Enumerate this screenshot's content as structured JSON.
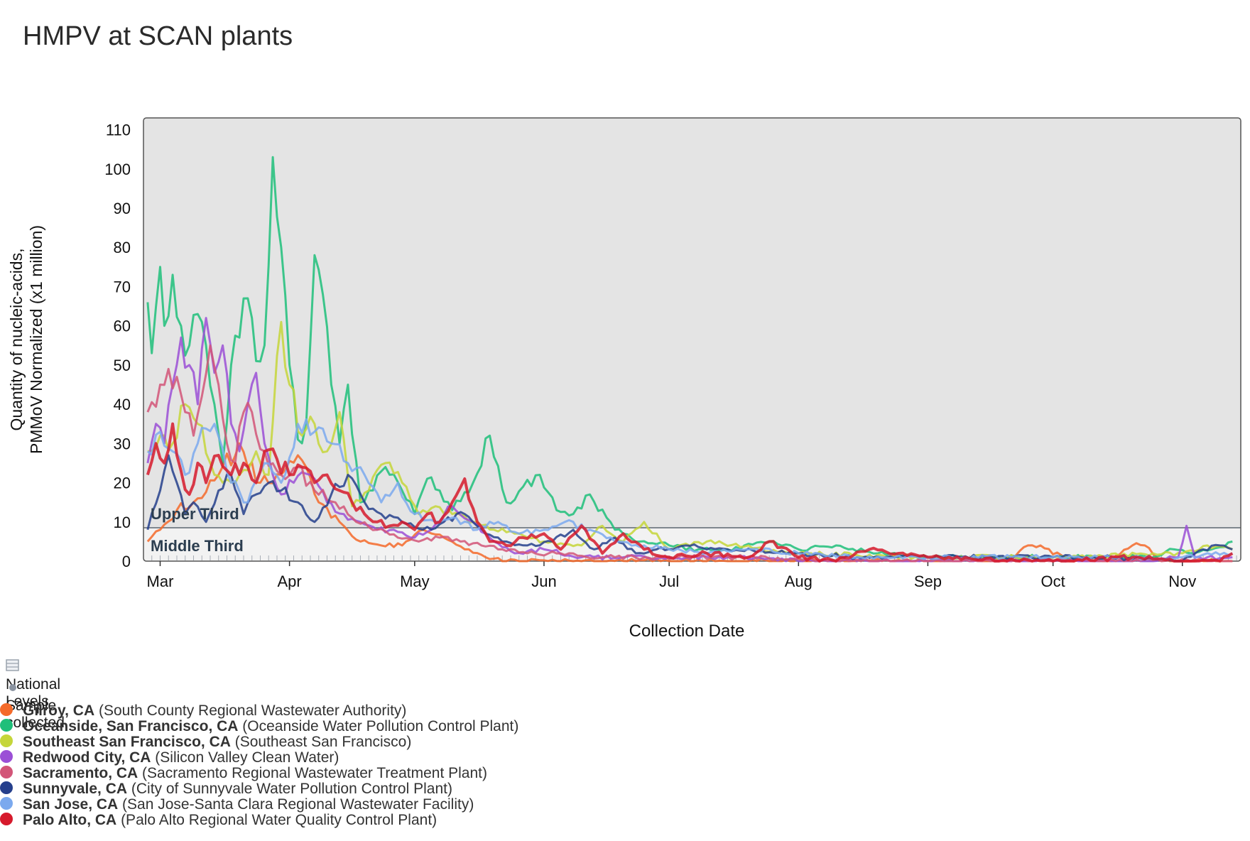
{
  "title": "HMPV at SCAN plants",
  "colors": {
    "plot_bg": "#e4e4e4",
    "bottom_band": "#f2f2f2",
    "frame": "#555555"
  },
  "chart_data": {
    "type": "line",
    "title": "HMPV at SCAN plants",
    "xlabel": "Collection Date",
    "ylabel_line1": "Quantity of nucleic-acids,",
    "ylabel_line2": "PMMoV Normalized (x1 million)",
    "x_tick_labels": [
      "Mar",
      "Apr",
      "May",
      "Jun",
      "Jul",
      "Aug",
      "Sep",
      "Oct",
      "Nov"
    ],
    "x_tick_dates": [
      "2024-03-01",
      "2024-04-01",
      "2024-05-01",
      "2024-06-01",
      "2024-07-01",
      "2024-08-01",
      "2024-09-01",
      "2024-10-01",
      "2024-11-01"
    ],
    "xlim": [
      "2024-02-26",
      "2024-11-15"
    ],
    "y_ticks": [
      0,
      10,
      20,
      30,
      40,
      50,
      60,
      70,
      80,
      90,
      100,
      110
    ],
    "ylim": [
      0,
      113
    ],
    "national_level_bands": [
      {
        "label": "Upper Third",
        "from": 8.5,
        "to": 113
      },
      {
        "label": "Middle Third",
        "from": 0,
        "to": 8.5
      }
    ],
    "series": [
      {
        "name": "Gilroy, CA",
        "color": "#f46a2a",
        "width": 3,
        "x": [
          "2024-02-27",
          "2024-03-01",
          "2024-03-05",
          "2024-03-10",
          "2024-03-15",
          "2024-03-20",
          "2024-03-25",
          "2024-03-30",
          "2024-04-03",
          "2024-04-08",
          "2024-04-13",
          "2024-04-18",
          "2024-04-23",
          "2024-04-28",
          "2024-05-03",
          "2024-05-08",
          "2024-05-13",
          "2024-05-18",
          "2024-05-23",
          "2024-05-28",
          "2024-06-05",
          "2024-06-15",
          "2024-07-01",
          "2024-07-20",
          "2024-08-10",
          "2024-09-01",
          "2024-09-20",
          "2024-09-25",
          "2024-09-28",
          "2024-10-05",
          "2024-10-15",
          "2024-10-20",
          "2024-10-23",
          "2024-10-27",
          "2024-11-01",
          "2024-11-10",
          "2024-11-13"
        ],
        "values": [
          5,
          8,
          13,
          16,
          22,
          30,
          20,
          22,
          27,
          15,
          10,
          5,
          4,
          4,
          8,
          6,
          3,
          1,
          0,
          0,
          0,
          0,
          0,
          0,
          0,
          0,
          0,
          4,
          4,
          0,
          0,
          4,
          4,
          0,
          0,
          0,
          0
        ]
      },
      {
        "name": "Oceanside, San Francisco, CA",
        "color": "#1fbf7a",
        "width": 3,
        "x": [
          "2024-02-27",
          "2024-02-28",
          "2024-03-01",
          "2024-03-02",
          "2024-03-04",
          "2024-03-06",
          "2024-03-08",
          "2024-03-10",
          "2024-03-12",
          "2024-03-14",
          "2024-03-16",
          "2024-03-18",
          "2024-03-20",
          "2024-03-22",
          "2024-03-24",
          "2024-03-26",
          "2024-03-28",
          "2024-03-30",
          "2024-04-01",
          "2024-04-03",
          "2024-04-05",
          "2024-04-07",
          "2024-04-09",
          "2024-04-11",
          "2024-04-13",
          "2024-04-15",
          "2024-04-18",
          "2024-04-20",
          "2024-04-24",
          "2024-04-28",
          "2024-05-01",
          "2024-05-04",
          "2024-05-07",
          "2024-05-10",
          "2024-05-15",
          "2024-05-19",
          "2024-05-23",
          "2024-05-27",
          "2024-05-31",
          "2024-06-04",
          "2024-06-08",
          "2024-06-12",
          "2024-06-18",
          "2024-06-24",
          "2024-07-01",
          "2024-07-08",
          "2024-07-15",
          "2024-07-25",
          "2024-08-01",
          "2024-08-10",
          "2024-08-20",
          "2024-09-01",
          "2024-09-15",
          "2024-10-01",
          "2024-10-15",
          "2024-10-25",
          "2024-10-30",
          "2024-11-03",
          "2024-11-08",
          "2024-11-13"
        ],
        "values": [
          66,
          53,
          75,
          60,
          73,
          60,
          55,
          63,
          55,
          40,
          25,
          50,
          57,
          67,
          51,
          55,
          103,
          80,
          50,
          31,
          35,
          78,
          68,
          45,
          30,
          45,
          15,
          18,
          24,
          18,
          12,
          21,
          18,
          13,
          20,
          32,
          15,
          19,
          22,
          13,
          12,
          17,
          8,
          5,
          4,
          3,
          3,
          5,
          3,
          4,
          2,
          1,
          1,
          1,
          1,
          1,
          3,
          2,
          3,
          5
        ]
      },
      {
        "name": "Southeast San Francisco, CA",
        "color": "#c5d63a",
        "width": 3,
        "x": [
          "2024-02-27",
          "2024-03-01",
          "2024-03-04",
          "2024-03-07",
          "2024-03-10",
          "2024-03-13",
          "2024-03-16",
          "2024-03-20",
          "2024-03-24",
          "2024-03-27",
          "2024-03-30",
          "2024-04-01",
          "2024-04-04",
          "2024-04-07",
          "2024-04-10",
          "2024-04-13",
          "2024-04-16",
          "2024-04-20",
          "2024-04-24",
          "2024-04-28",
          "2024-05-02",
          "2024-05-06",
          "2024-05-10",
          "2024-05-15",
          "2024-05-20",
          "2024-05-25",
          "2024-06-01",
          "2024-06-10",
          "2024-06-15",
          "2024-06-20",
          "2024-06-25",
          "2024-07-01",
          "2024-07-10",
          "2024-08-01",
          "2024-09-01",
          "2024-10-01",
          "2024-10-25",
          "2024-11-01",
          "2024-11-07",
          "2024-11-13"
        ],
        "values": [
          28,
          32,
          30,
          40,
          35,
          25,
          20,
          22,
          28,
          22,
          61,
          45,
          32,
          35,
          28,
          38,
          14,
          18,
          25,
          20,
          12,
          14,
          12,
          10,
          8,
          7,
          5,
          4,
          9,
          5,
          10,
          3,
          5,
          2,
          1,
          1,
          2,
          2,
          4,
          3
        ]
      },
      {
        "name": "Redwood City, CA",
        "color": "#9b4fd6",
        "width": 3,
        "x": [
          "2024-02-27",
          "2024-02-29",
          "2024-03-02",
          "2024-03-04",
          "2024-03-06",
          "2024-03-08",
          "2024-03-10",
          "2024-03-12",
          "2024-03-14",
          "2024-03-16",
          "2024-03-18",
          "2024-03-20",
          "2024-03-22",
          "2024-03-24",
          "2024-03-26",
          "2024-03-28",
          "2024-03-30",
          "2024-04-02",
          "2024-04-06",
          "2024-04-10",
          "2024-04-14",
          "2024-04-18",
          "2024-04-22",
          "2024-04-26",
          "2024-04-30",
          "2024-05-05",
          "2024-05-10",
          "2024-05-15",
          "2024-05-20",
          "2024-05-25",
          "2024-06-01",
          "2024-06-10",
          "2024-06-20",
          "2024-07-01",
          "2024-07-15",
          "2024-08-01",
          "2024-09-01",
          "2024-10-01",
          "2024-10-25",
          "2024-10-31",
          "2024-11-02",
          "2024-11-04",
          "2024-11-07",
          "2024-11-13"
        ],
        "values": [
          25,
          35,
          30,
          45,
          57,
          50,
          40,
          62,
          48,
          55,
          35,
          28,
          40,
          48,
          30,
          22,
          17,
          20,
          22,
          15,
          12,
          10,
          8,
          8,
          6,
          8,
          14,
          10,
          5,
          2,
          3,
          1,
          1,
          1,
          1,
          0,
          0,
          0,
          0,
          1,
          9,
          1,
          1,
          1
        ]
      },
      {
        "name": "Sacramento, CA",
        "color": "#d25578",
        "width": 3,
        "x": [
          "2024-02-27",
          "2024-03-01",
          "2024-03-03",
          "2024-03-05",
          "2024-03-07",
          "2024-03-09",
          "2024-03-11",
          "2024-03-13",
          "2024-03-15",
          "2024-03-17",
          "2024-03-19",
          "2024-03-21",
          "2024-03-23",
          "2024-03-26",
          "2024-03-30",
          "2024-04-03",
          "2024-04-07",
          "2024-04-12",
          "2024-04-17",
          "2024-04-22",
          "2024-04-27",
          "2024-05-02",
          "2024-05-07",
          "2024-05-12",
          "2024-05-17",
          "2024-05-22",
          "2024-05-28",
          "2024-06-05",
          "2024-06-15",
          "2024-06-25",
          "2024-07-05",
          "2024-07-20",
          "2024-08-10",
          "2024-09-01",
          "2024-10-01",
          "2024-10-30",
          "2024-11-05",
          "2024-11-13"
        ],
        "values": [
          38,
          45,
          49,
          47,
          38,
          32,
          42,
          55,
          45,
          30,
          25,
          38,
          38,
          28,
          22,
          24,
          18,
          15,
          10,
          8,
          6,
          5,
          6,
          5,
          4,
          3,
          2,
          2,
          1,
          1,
          1,
          1,
          0,
          0,
          0,
          0,
          0,
          0
        ]
      },
      {
        "name": "Sunnyvale, CA",
        "color": "#253f8c",
        "width": 3,
        "x": [
          "2024-02-27",
          "2024-03-01",
          "2024-03-03",
          "2024-03-05",
          "2024-03-07",
          "2024-03-09",
          "2024-03-12",
          "2024-03-15",
          "2024-03-18",
          "2024-03-21",
          "2024-03-24",
          "2024-03-27",
          "2024-03-30",
          "2024-04-03",
          "2024-04-07",
          "2024-04-11",
          "2024-04-15",
          "2024-04-19",
          "2024-04-23",
          "2024-04-28",
          "2024-05-03",
          "2024-05-08",
          "2024-05-13",
          "2024-05-18",
          "2024-05-23",
          "2024-05-28",
          "2024-06-03",
          "2024-06-08",
          "2024-06-13",
          "2024-06-18",
          "2024-06-23",
          "2024-06-28",
          "2024-07-05",
          "2024-07-15",
          "2024-08-01",
          "2024-08-15",
          "2024-09-01",
          "2024-09-15",
          "2024-10-01",
          "2024-10-15",
          "2024-11-01",
          "2024-11-06",
          "2024-11-10",
          "2024-11-13"
        ],
        "values": [
          8,
          18,
          27,
          20,
          12,
          15,
          10,
          18,
          22,
          12,
          17,
          20,
          18,
          15,
          10,
          17,
          22,
          15,
          12,
          10,
          8,
          10,
          12,
          7,
          5,
          4,
          5,
          8,
          3,
          6,
          2,
          3,
          4,
          3,
          2,
          1,
          1,
          1,
          1,
          1,
          0,
          3,
          4,
          3
        ]
      },
      {
        "name": "San Jose, CA",
        "color": "#7ba9ee",
        "width": 3,
        "x": [
          "2024-02-27",
          "2024-03-01",
          "2024-03-04",
          "2024-03-07",
          "2024-03-10",
          "2024-03-14",
          "2024-03-18",
          "2024-03-22",
          "2024-03-26",
          "2024-03-30",
          "2024-04-03",
          "2024-04-07",
          "2024-04-11",
          "2024-04-15",
          "2024-04-19",
          "2024-04-23",
          "2024-04-27",
          "2024-05-01",
          "2024-05-06",
          "2024-05-11",
          "2024-05-16",
          "2024-05-21",
          "2024-05-26",
          "2024-06-01",
          "2024-06-06",
          "2024-06-12",
          "2024-06-18",
          "2024-06-25",
          "2024-07-01",
          "2024-07-10",
          "2024-07-20",
          "2024-08-01",
          "2024-08-15",
          "2024-09-01",
          "2024-10-01",
          "2024-11-01",
          "2024-11-13"
        ],
        "values": [
          28,
          33,
          28,
          22,
          30,
          35,
          20,
          15,
          25,
          20,
          35,
          33,
          30,
          25,
          22,
          15,
          20,
          12,
          10,
          11,
          8,
          10,
          7,
          8,
          10,
          8,
          5,
          4,
          3,
          2,
          3,
          2,
          1,
          1,
          1,
          1,
          2
        ]
      },
      {
        "name": "Palo Alto, CA",
        "color": "#d61a2c",
        "width": 4,
        "x": [
          "2024-02-27",
          "2024-02-29",
          "2024-03-02",
          "2024-03-04",
          "2024-03-06",
          "2024-03-08",
          "2024-03-10",
          "2024-03-12",
          "2024-03-15",
          "2024-03-18",
          "2024-03-21",
          "2024-03-24",
          "2024-03-26",
          "2024-03-29",
          "2024-04-01",
          "2024-04-04",
          "2024-04-07",
          "2024-04-10",
          "2024-04-13",
          "2024-04-16",
          "2024-04-19",
          "2024-04-22",
          "2024-04-25",
          "2024-04-28",
          "2024-05-01",
          "2024-05-04",
          "2024-05-07",
          "2024-05-10",
          "2024-05-13",
          "2024-05-16",
          "2024-05-19",
          "2024-05-23",
          "2024-05-27",
          "2024-06-01",
          "2024-06-05",
          "2024-06-10",
          "2024-06-15",
          "2024-06-20",
          "2024-06-25",
          "2024-07-01",
          "2024-07-10",
          "2024-07-20",
          "2024-07-25",
          "2024-08-01",
          "2024-08-10",
          "2024-08-18",
          "2024-08-25",
          "2024-09-01",
          "2024-09-20",
          "2024-10-01",
          "2024-10-20",
          "2024-11-01",
          "2024-11-10",
          "2024-11-13"
        ],
        "values": [
          22,
          30,
          25,
          35,
          23,
          17,
          25,
          20,
          27,
          22,
          25,
          20,
          28,
          26,
          22,
          24,
          20,
          22,
          18,
          15,
          12,
          10,
          9,
          10,
          8,
          12,
          10,
          15,
          21,
          10,
          5,
          4,
          6,
          7,
          3,
          9,
          2,
          7,
          3,
          1,
          2,
          1,
          5,
          1,
          0,
          3,
          2,
          1,
          0,
          0,
          1,
          0,
          0,
          2
        ]
      }
    ]
  },
  "bands": {
    "upper": "Upper Third",
    "middle": "Middle Third"
  },
  "legend": {
    "national_levels": "National Levels",
    "sample_collected": "Sample collected",
    "items": [
      {
        "city": "Gilroy, CA",
        "plant": "(South County Regional Wastewater Authority)"
      },
      {
        "city": "Oceanside, San Francisco, CA",
        "plant": "(Oceanside Water Pollution Control Plant)"
      },
      {
        "city": "Southeast San Francisco, CA",
        "plant": "(Southeast San Francisco)"
      },
      {
        "city": "Redwood City, CA",
        "plant": "(Silicon Valley Clean Water)"
      },
      {
        "city": "Sacramento, CA",
        "plant": "(Sacramento Regional Wastewater Treatment Plant)"
      },
      {
        "city": "Sunnyvale, CA",
        "plant": "(City of Sunnyvale Water Pollution Control Plant)"
      },
      {
        "city": "San Jose, CA",
        "plant": "(San Jose-Santa Clara Regional Wastewater Facility)"
      },
      {
        "city": "Palo Alto, CA",
        "plant": "(Palo Alto Regional Water Quality Control Plant)"
      }
    ]
  }
}
